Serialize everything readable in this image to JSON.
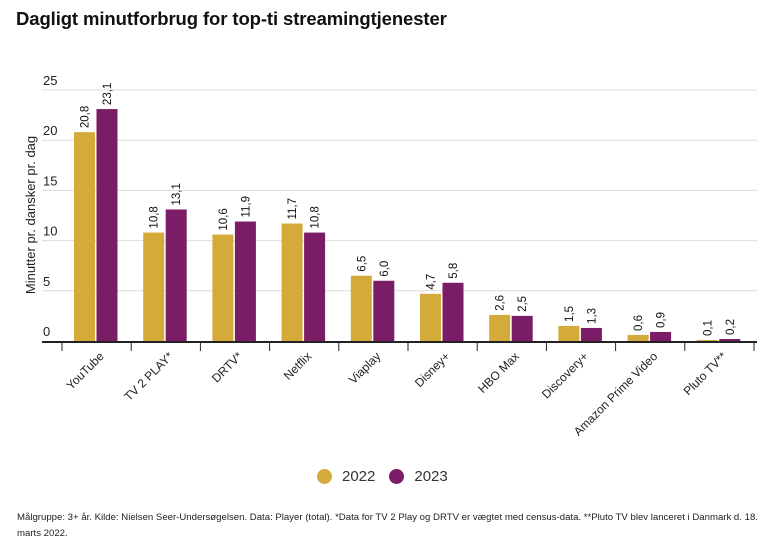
{
  "title": "Dagligt minutforbrug for top-ti streamingtjenester",
  "chart_data": {
    "type": "bar",
    "title": "Dagligt minutforbrug for top-ti streamingtjenester",
    "xlabel": "",
    "ylabel": "Minutter pr. dansker pr. dag",
    "ylim": [
      0,
      25
    ],
    "yticks": [
      0,
      5,
      10,
      15,
      20,
      25
    ],
    "ytick_labels": [
      "0",
      "5",
      "10",
      "15",
      "20",
      "25"
    ],
    "grid": true,
    "legend_position": "bottom",
    "categories": [
      "YouTube",
      "TV 2 PLAY*",
      "DRTV*",
      "Netflix",
      "Viaplay",
      "Disney+",
      "HBO Max",
      "Discovery+",
      "Amazon Prime Video",
      "Pluto TV**"
    ],
    "series": [
      {
        "name": "2022",
        "color": "#d4aa3a",
        "values": [
          20.8,
          10.8,
          10.6,
          11.7,
          6.5,
          4.7,
          2.6,
          1.5,
          0.6,
          0.1
        ],
        "labels": [
          "20,8",
          "10,8",
          "10,6",
          "11,7",
          "6,5",
          "4,7",
          "2,6",
          "1,5",
          "0,6",
          "0,1"
        ]
      },
      {
        "name": "2023",
        "color": "#7b1c66",
        "values": [
          23.1,
          13.1,
          11.9,
          10.8,
          6.0,
          5.8,
          2.5,
          1.3,
          0.9,
          0.2
        ],
        "labels": [
          "23,1",
          "13,1",
          "11,9",
          "10,8",
          "6,0",
          "5,8",
          "2,5",
          "1,3",
          "0,9",
          "0,2"
        ]
      }
    ]
  },
  "footnote": "Målgruppe: 3+ år. Kilde: Nielsen Seer-Undersøgelsen. Data: Player (total). *Data for TV 2 Play og DRTV er vægtet med census-data. **Pluto TV blev lanceret i Danmark d. 18. marts 2022."
}
